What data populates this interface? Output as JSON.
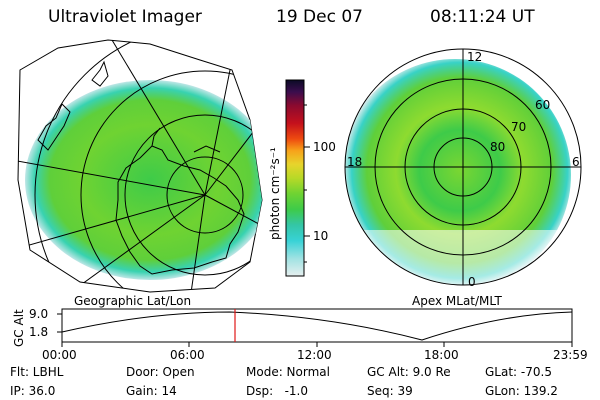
{
  "header": {
    "instrument": "Ultraviolet Imager",
    "date": "19 Dec 07",
    "time": "08:11:24 UT"
  },
  "left_panel": {
    "caption": "Geographic Lat/Lon"
  },
  "right_panel": {
    "caption": "Apex MLat/MLT",
    "mlt_labels": {
      "top": "12",
      "bottom": "0",
      "left": "18",
      "right": "6"
    },
    "mlat_labels": [
      "60",
      "70",
      "80"
    ]
  },
  "colorbar": {
    "unit_label": "photon cm⁻²s⁻¹",
    "ticks": [
      "100",
      "10"
    ],
    "scale": "log",
    "colors": [
      "#0b0b26",
      "#3a0d4d",
      "#8b0a2f",
      "#c4101c",
      "#ee4a10",
      "#f7a21a",
      "#e7d42c",
      "#b8d927",
      "#6fd332",
      "#3ecb49",
      "#34c6a6",
      "#38d2d6",
      "#9fe2e2",
      "#e6efef"
    ]
  },
  "orbit": {
    "axis_label": "GC Alt",
    "y_ticks": [
      "9.0",
      "1.8"
    ],
    "x_ticks": [
      "00:00",
      "06:00",
      "12:00",
      "18:00",
      "23:59"
    ],
    "marker_time_fraction": 0.34,
    "marker_color": "#e01818"
  },
  "footer": {
    "row1": [
      "Flt: LBHL",
      "Door: Open",
      "Mode: Normal",
      "GC Alt: 9.0 Re",
      "GLat: -70.5"
    ],
    "row2": [
      "IP: 36.0",
      "Gain: 14",
      "Dsp:   -1.0",
      "Seq: 39",
      "GLon: 139.2"
    ]
  }
}
